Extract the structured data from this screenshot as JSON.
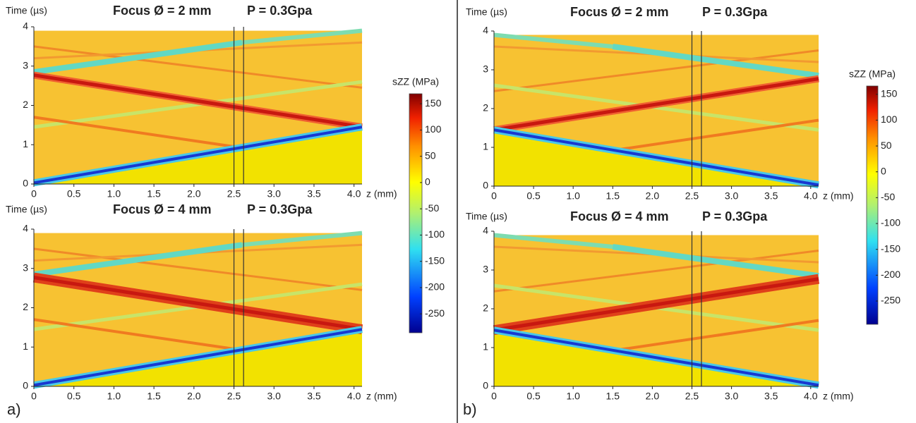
{
  "chart_data": [
    {
      "type": "heatmap",
      "title": "Focus Ø = 2 mm",
      "annotation": "P = 0.3Gpa",
      "xlabel": "z (mm)",
      "ylabel": "Time (µs)",
      "xlim": [
        0,
        4.1
      ],
      "ylim": [
        0,
        4
      ],
      "xticks": [
        0,
        0.5,
        {
          "value": 1,
          "label": "1.0"
        },
        1.5,
        {
          "value": 2,
          "label": "2.0"
        },
        2.5,
        {
          "value": 3,
          "label": "3.0"
        },
        3.5,
        {
          "value": 4,
          "label": "4.0"
        }
      ],
      "yticks": [
        0,
        1,
        2,
        3,
        4
      ],
      "colorbar": {
        "label": "sZZ (MPa)",
        "lim": [
          -286,
          169
        ],
        "ticks": [
          150,
          100,
          50,
          0,
          -50,
          -100,
          -150,
          -200,
          -250
        ]
      }
    },
    {
      "type": "heatmap",
      "title": "Focus Ø = 4 mm",
      "annotation": "P = 0.3Gpa",
      "xlabel": "z (mm)",
      "ylabel": "Time (µs)",
      "xlim": [
        0,
        4.1
      ],
      "ylim": [
        0,
        4
      ],
      "xticks": [
        0,
        0.5,
        {
          "value": 1,
          "label": "1.0"
        },
        1.5,
        {
          "value": 2,
          "label": "2.0"
        },
        2.5,
        {
          "value": 3,
          "label": "3.0"
        },
        3.5,
        {
          "value": 4,
          "label": "4.0"
        }
      ],
      "yticks": [
        0,
        1,
        2,
        3,
        4
      ],
      "panel_label": "a)"
    },
    {
      "type": "heatmap",
      "title": "Focus Ø = 2 mm",
      "annotation": "P = 0.3Gpa",
      "xlabel": "z (mm)",
      "ylabel": "Time (µs)",
      "xlim": [
        0,
        4.1
      ],
      "ylim": [
        0,
        4
      ],
      "xticks": [
        0,
        0.5,
        {
          "value": 1,
          "label": "1.0"
        },
        1.5,
        {
          "value": 2,
          "label": "2.0"
        },
        2.5,
        {
          "value": 3,
          "label": "3.0"
        },
        3.5,
        {
          "value": 4,
          "label": "4.0"
        }
      ],
      "yticks": [
        0,
        1,
        2,
        3,
        4
      ],
      "colorbar": {
        "label": "sZZ (MPa)",
        "lim": [
          -295,
          166
        ],
        "ticks": [
          150,
          100,
          50,
          0,
          -50,
          -100,
          -150,
          -200,
          -250
        ]
      }
    },
    {
      "type": "heatmap",
      "title": "Focus Ø = 4 mm",
      "annotation": "P = 0.3Gpa",
      "xlabel": "z (mm)",
      "ylabel": "Time (µs)",
      "xlim": [
        0,
        4.1
      ],
      "ylim": [
        0,
        4
      ],
      "xticks": [
        0,
        0.5,
        {
          "value": 1,
          "label": "1.0"
        },
        1.5,
        {
          "value": 2,
          "label": "2.0"
        },
        2.5,
        {
          "value": 3,
          "label": "3.0"
        },
        3.5,
        {
          "value": 4,
          "label": "4.0"
        }
      ],
      "yticks": [
        0,
        1,
        2,
        3,
        4
      ],
      "panel_label": "b)"
    }
  ]
}
